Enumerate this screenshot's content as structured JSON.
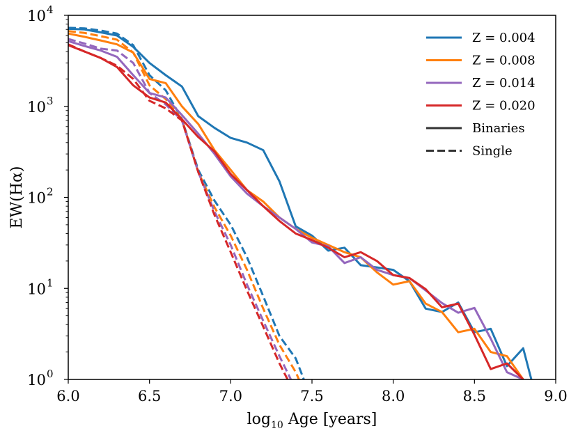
{
  "chart_data": {
    "type": "line",
    "x_axis": {
      "label_main": "log",
      "label_sub": "10",
      "label_rest": " Age [years]",
      "range": [
        6.0,
        9.0
      ],
      "ticks": [
        6.0,
        6.5,
        7.0,
        7.5,
        8.0,
        8.5,
        9.0
      ],
      "tick_labels": [
        "6.0",
        "6.5",
        "7.0",
        "7.5",
        "8.0",
        "8.5",
        "9.0"
      ]
    },
    "y_axis": {
      "label": "EW(Hα)",
      "scale": "log",
      "range": [
        1,
        10000
      ],
      "ticks": [
        1,
        10,
        100,
        1000,
        10000
      ],
      "tick_bases": [
        "10",
        "10",
        "10",
        "10",
        "10"
      ],
      "tick_exponents": [
        "0",
        "1",
        "2",
        "3",
        "4"
      ]
    },
    "legend": {
      "placement": "top-right",
      "entries": [
        {
          "label": "Z = 0.004",
          "color": "#1f77b4",
          "style": "solid"
        },
        {
          "label": "Z = 0.008",
          "color": "#ff7f0e",
          "style": "solid"
        },
        {
          "label": "Z = 0.014",
          "color": "#9467bd",
          "style": "solid"
        },
        {
          "label": "Z = 0.020",
          "color": "#d62728",
          "style": "solid"
        },
        {
          "label": "Binaries",
          "color": "#333333",
          "style": "solid"
        },
        {
          "label": "Single",
          "color": "#333333",
          "style": "dashed"
        }
      ]
    },
    "series": [
      {
        "name": "Z = 0.004 Single",
        "color": "#1f77b4",
        "style": "dashed",
        "x": [
          6.0,
          6.1,
          6.2,
          6.3,
          6.4,
          6.5,
          6.6,
          6.7,
          6.8,
          6.9,
          7.0,
          7.1,
          7.2,
          7.3,
          7.4,
          7.45
        ],
        "y": [
          7300,
          7200,
          6800,
          6300,
          4700,
          2200,
          1500,
          720,
          200,
          92,
          50,
          22,
          8.2,
          3.0,
          1.7,
          1.0
        ]
      },
      {
        "name": "Z = 0.008 Single",
        "color": "#ff7f0e",
        "style": "dashed",
        "x": [
          6.0,
          6.1,
          6.2,
          6.3,
          6.4,
          6.5,
          6.6,
          6.7,
          6.8,
          6.9,
          7.0,
          7.1,
          7.2,
          7.3,
          7.4,
          7.42
        ],
        "y": [
          6700,
          6400,
          5900,
          5400,
          3900,
          1700,
          1200,
          720,
          190,
          78,
          38,
          16,
          6.0,
          2.4,
          1.2,
          1.0
        ]
      },
      {
        "name": "Z = 0.014 Single",
        "color": "#9467bd",
        "style": "dashed",
        "x": [
          6.0,
          6.1,
          6.2,
          6.3,
          6.4,
          6.5,
          6.6,
          6.7,
          6.8,
          6.9,
          7.0,
          7.1,
          7.2,
          7.3,
          7.37
        ],
        "y": [
          5500,
          4900,
          4300,
          4100,
          3000,
          1400,
          1050,
          700,
          190,
          70,
          30,
          11,
          4.4,
          1.8,
          1.0
        ]
      },
      {
        "name": "Z = 0.020 Single",
        "color": "#d62728",
        "style": "dashed",
        "x": [
          6.0,
          6.1,
          6.2,
          6.3,
          6.4,
          6.5,
          6.6,
          6.7,
          6.8,
          6.9,
          7.0,
          7.1,
          7.2,
          7.3,
          7.35
        ],
        "y": [
          4800,
          4000,
          3400,
          2800,
          2000,
          1150,
          950,
          700,
          190,
          64,
          25,
          9.5,
          3.8,
          1.5,
          1.0
        ]
      },
      {
        "name": "Z = 0.004 Binaries",
        "color": "#1f77b4",
        "style": "solid",
        "x": [
          6.0,
          6.1,
          6.2,
          6.3,
          6.4,
          6.5,
          6.6,
          6.7,
          6.8,
          6.9,
          7.0,
          7.1,
          7.2,
          7.3,
          7.4,
          7.5,
          7.6,
          7.7,
          7.8,
          7.9,
          8.0,
          8.1,
          8.2,
          8.3,
          8.4,
          8.5,
          8.6,
          8.7,
          8.8,
          8.85
        ],
        "y": [
          7100,
          7000,
          6500,
          6000,
          4500,
          3000,
          2200,
          1650,
          780,
          580,
          450,
          400,
          330,
          150,
          48,
          38,
          26,
          28,
          18,
          17,
          16,
          12,
          6.0,
          5.5,
          7.0,
          3.3,
          3.6,
          1.4,
          2.2,
          1.0
        ]
      },
      {
        "name": "Z = 0.008 Binaries",
        "color": "#ff7f0e",
        "style": "solid",
        "x": [
          6.0,
          6.1,
          6.2,
          6.3,
          6.4,
          6.5,
          6.6,
          6.7,
          6.8,
          6.9,
          7.0,
          7.1,
          7.2,
          7.3,
          7.4,
          7.5,
          7.6,
          7.7,
          7.8,
          7.9,
          8.0,
          8.1,
          8.2,
          8.3,
          8.4,
          8.5,
          8.6,
          8.7,
          8.8
        ],
        "y": [
          6300,
          5800,
          5300,
          4800,
          3900,
          2000,
          1800,
          1000,
          640,
          330,
          200,
          120,
          90,
          60,
          45,
          36,
          30,
          25,
          22,
          15,
          11,
          12,
          6.8,
          5.5,
          3.3,
          3.6,
          2.0,
          1.8,
          1.0
        ]
      },
      {
        "name": "Z = 0.014 Binaries",
        "color": "#9467bd",
        "style": "solid",
        "x": [
          6.0,
          6.1,
          6.2,
          6.3,
          6.4,
          6.5,
          6.6,
          6.7,
          6.8,
          6.9,
          7.0,
          7.1,
          7.2,
          7.3,
          7.4,
          7.5,
          7.6,
          7.7,
          7.8,
          7.9,
          8.0,
          8.1,
          8.2,
          8.3,
          8.4,
          8.5,
          8.6,
          8.7,
          8.8
        ],
        "y": [
          5200,
          4600,
          4100,
          3500,
          2200,
          1400,
          1250,
          800,
          500,
          300,
          170,
          110,
          80,
          60,
          45,
          32,
          29,
          19,
          22,
          16,
          14,
          13,
          9.5,
          6.9,
          5.4,
          6.1,
          2.8,
          1.2,
          1.0
        ]
      },
      {
        "name": "Z = 0.020 Binaries",
        "color": "#d62728",
        "style": "solid",
        "x": [
          6.0,
          6.1,
          6.2,
          6.3,
          6.4,
          6.5,
          6.6,
          6.7,
          6.8,
          6.9,
          7.0,
          7.1,
          7.2,
          7.3,
          7.4,
          7.5,
          7.6,
          7.7,
          7.8,
          7.9,
          8.0,
          8.1,
          8.2,
          8.3,
          8.4,
          8.5,
          8.6,
          8.7,
          8.8
        ],
        "y": [
          4700,
          4000,
          3400,
          2700,
          1700,
          1250,
          1100,
          720,
          460,
          320,
          180,
          120,
          80,
          55,
          40,
          34,
          28,
          22,
          25,
          20,
          14,
          13,
          9.8,
          6.2,
          6.8,
          3.1,
          1.3,
          1.5,
          1.0
        ]
      }
    ]
  }
}
